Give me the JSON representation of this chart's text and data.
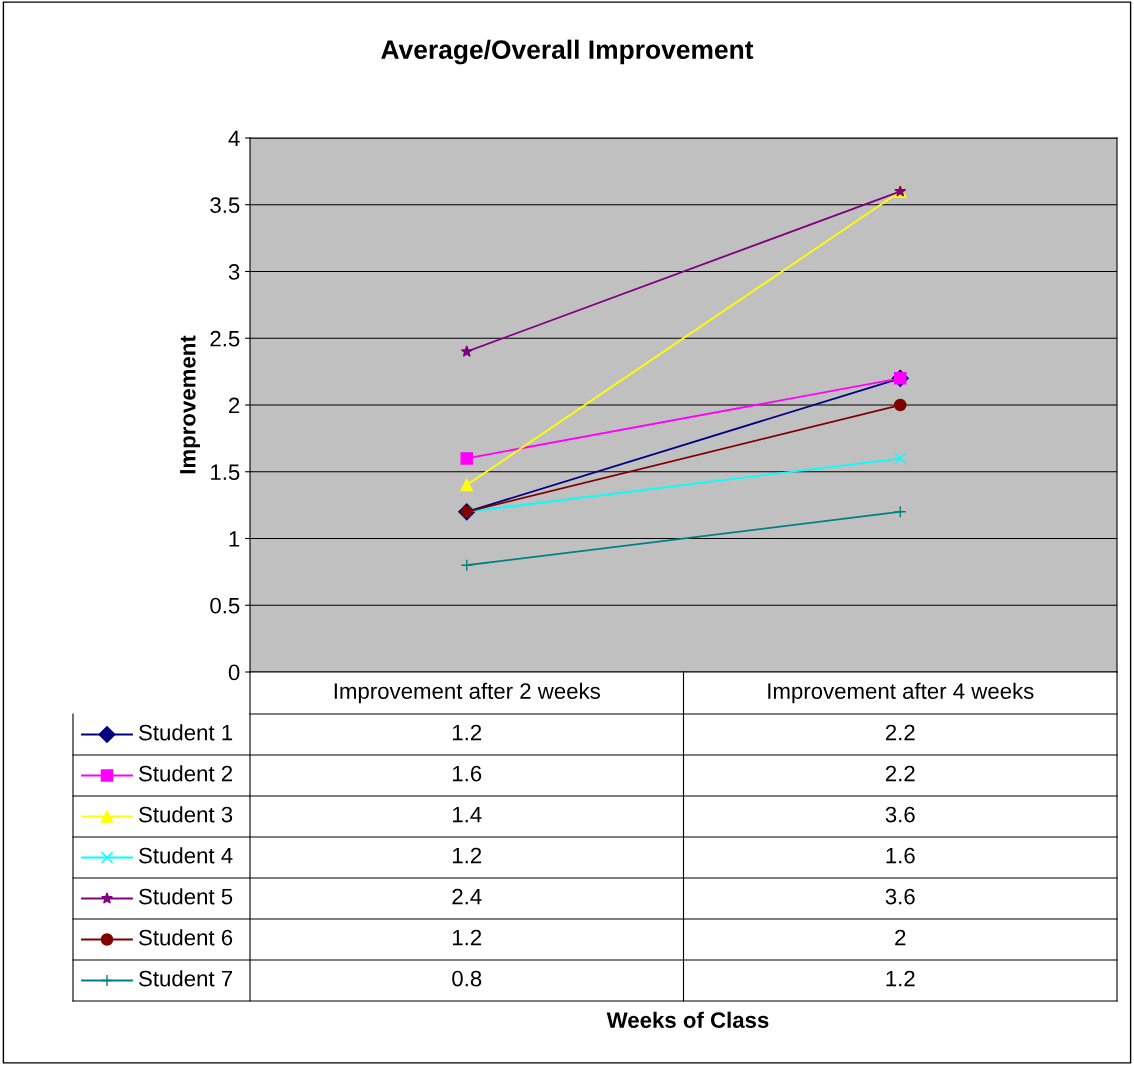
{
  "chart_data": {
    "type": "line",
    "title": "Average/Overall Improvement",
    "annotations": [
      "Weeks of Class"
    ],
    "ylabel": "Improvement",
    "categories": [
      "Improvement after 2 weeks",
      "Improvement after 4 weeks"
    ],
    "ylim": [
      0,
      4
    ],
    "yticks": [
      0,
      0.5,
      1,
      1.5,
      2,
      2.5,
      3,
      3.5,
      4
    ],
    "grid": "y",
    "legend": "bottom",
    "data_labels": true,
    "series": [
      {
        "name": "Student 1",
        "color": "#000080",
        "marker": "diamond",
        "values": [
          1.2,
          2.2
        ]
      },
      {
        "name": "Student 2",
        "color": "#ff00ff",
        "marker": "square",
        "values": [
          1.6,
          2.2
        ]
      },
      {
        "name": "Student 3",
        "color": "#ffff00",
        "marker": "triangle",
        "values": [
          1.4,
          3.6
        ]
      },
      {
        "name": "Student 4",
        "color": "#00ffff",
        "marker": "cross",
        "values": [
          1.2,
          1.6
        ]
      },
      {
        "name": "Student 5",
        "color": "#800080",
        "marker": "star",
        "values": [
          2.4,
          3.6
        ]
      },
      {
        "name": "Student 6",
        "color": "#800000",
        "marker": "circle",
        "values": [
          1.2,
          2
        ]
      },
      {
        "name": "Student 7",
        "color": "#008080",
        "marker": "plus",
        "values": [
          0.8,
          1.2
        ]
      }
    ]
  }
}
